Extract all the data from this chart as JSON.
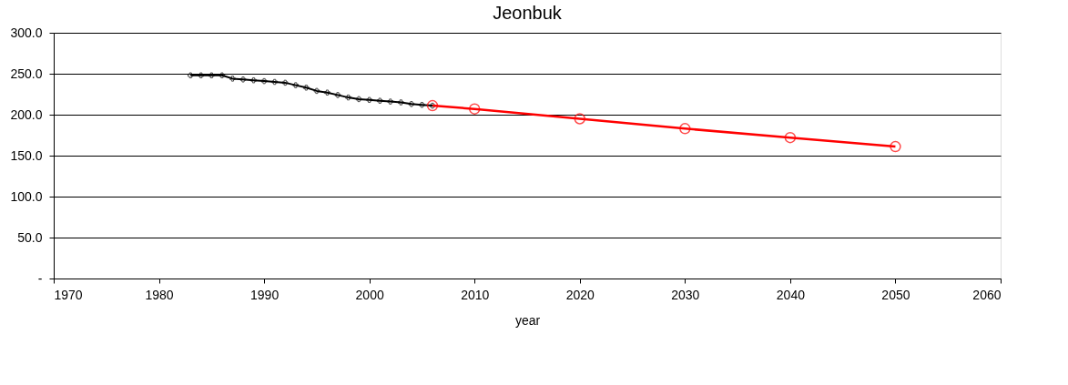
{
  "chart_data": {
    "type": "line",
    "title": "Jeonbuk",
    "xlabel": "year",
    "xlim": [
      1970,
      2060
    ],
    "xticks": [
      1970,
      1980,
      1990,
      2000,
      2010,
      2020,
      2030,
      2040,
      2050,
      2060
    ],
    "ylim": [
      0,
      300
    ],
    "yticks": [
      {
        "value": 0,
        "label": "-"
      },
      {
        "value": 50,
        "label": "50.0"
      },
      {
        "value": 100,
        "label": "100.0"
      },
      {
        "value": 150,
        "label": "150.0"
      },
      {
        "value": 200,
        "label": "200.0"
      },
      {
        "value": 250,
        "label": "250.0"
      },
      {
        "value": 300,
        "label": "300.0"
      }
    ],
    "grid": "y",
    "series": [
      {
        "color": "#000000",
        "marker": "cross",
        "x": [
          1983,
          1984,
          1985,
          1986,
          1987,
          1988,
          1989,
          1990,
          1991,
          1992,
          1993,
          1994,
          1995,
          1996,
          1997,
          1998,
          1999,
          2000,
          2001,
          2002,
          2003,
          2004,
          2005,
          2006
        ],
        "values": [
          248,
          248,
          248,
          248,
          244,
          243,
          242,
          241,
          240,
          239,
          236,
          233,
          229,
          227,
          224,
          221,
          219,
          218,
          217,
          216,
          215,
          213,
          212,
          211
        ]
      },
      {
        "color": "#ff0000",
        "marker": "circle",
        "x": [
          2006,
          2010,
          2020,
          2030,
          2040,
          2050
        ],
        "values": [
          211,
          207,
          195,
          183,
          172,
          161
        ]
      }
    ]
  }
}
